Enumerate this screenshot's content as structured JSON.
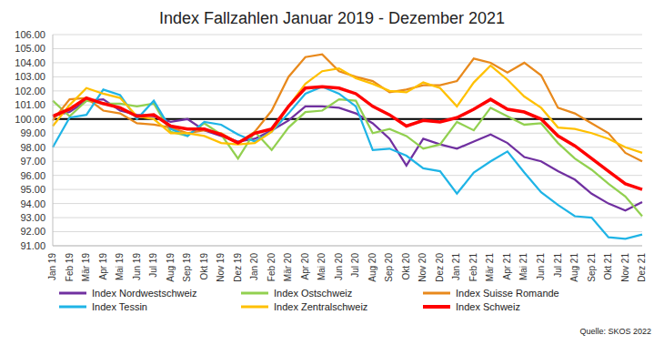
{
  "chart_data": {
    "type": "line",
    "title": "Index Fallzahlen Januar 2019 - Dezember 2021",
    "categories": [
      "Jan 19",
      "Feb 19",
      "Mär 19",
      "Apr 19",
      "Mai 19",
      "Jun 19",
      "Jul 19",
      "Aug 19",
      "Sep 19",
      "Okt 19",
      "Nov 19",
      "Dez 19",
      "Jan 20",
      "Feb 20",
      "Mär 20",
      "Apr 20",
      "Mai 20",
      "Jun 20",
      "Jul 20",
      "Aug 20",
      "Sep 20",
      "Okt 20",
      "Nov 20",
      "Dez 20",
      "Jan 21",
      "Feb 21",
      "Mär 21",
      "Apr 21",
      "Mai 21",
      "Jun 21",
      "Jul 21",
      "Aug 21",
      "Sep 21",
      "Okt 21",
      "Nov 21",
      "Dez 21"
    ],
    "series": [
      {
        "name": "Index Nordwestschweiz",
        "color": "#7030a0",
        "values": [
          100.2,
          100.5,
          101.3,
          101.4,
          100.6,
          100.3,
          100.2,
          99.8,
          100.0,
          99.2,
          98.8,
          98.4,
          98.6,
          99.2,
          99.9,
          100.9,
          100.9,
          100.8,
          100.4,
          99.7,
          98.6,
          96.7,
          98.6,
          98.2,
          97.9,
          98.4,
          98.9,
          98.3,
          97.3,
          97.0,
          96.3,
          95.7,
          94.7,
          94.0,
          93.5,
          94.1
        ]
      },
      {
        "name": "Index Ostschweiz",
        "color": "#92d050",
        "values": [
          101.3,
          100.2,
          101.3,
          101.1,
          101.1,
          100.9,
          101.1,
          99.1,
          98.8,
          99.7,
          98.9,
          97.2,
          99.1,
          97.8,
          99.4,
          100.5,
          100.6,
          101.4,
          101.3,
          99.0,
          99.3,
          98.8,
          97.9,
          98.2,
          99.8,
          99.2,
          100.8,
          100.2,
          99.6,
          99.7,
          98.3,
          97.2,
          96.4,
          95.4,
          94.5,
          93.1
        ]
      },
      {
        "name": "Index Suisse Romande",
        "color": "#e8891c",
        "values": [
          99.9,
          101.4,
          101.5,
          100.6,
          100.4,
          99.7,
          99.6,
          99.4,
          99.0,
          99.2,
          99.0,
          98.3,
          99.1,
          100.6,
          103.0,
          104.4,
          104.6,
          103.4,
          103.0,
          102.7,
          101.9,
          102.1,
          102.4,
          102.4,
          102.7,
          104.3,
          104.0,
          103.3,
          104.0,
          103.1,
          100.8,
          100.4,
          99.7,
          99.0,
          97.6,
          97.0
        ]
      },
      {
        "name": "Index Tessin",
        "color": "#1fb4e6",
        "values": [
          98.0,
          100.1,
          100.3,
          102.1,
          101.7,
          100.0,
          101.3,
          99.3,
          98.8,
          99.8,
          99.6,
          98.9,
          98.4,
          99.1,
          100.4,
          101.8,
          102.3,
          101.8,
          100.9,
          97.8,
          97.9,
          97.4,
          96.5,
          96.3,
          94.7,
          96.2,
          97.0,
          97.7,
          96.2,
          94.8,
          93.9,
          93.1,
          93.0,
          91.6,
          91.5,
          91.8
        ]
      },
      {
        "name": "Index Zentralschweiz",
        "color": "#ffc000",
        "values": [
          99.5,
          101.0,
          102.2,
          101.8,
          101.5,
          100.2,
          100.0,
          99.0,
          99.0,
          98.8,
          98.3,
          98.2,
          98.3,
          99.1,
          100.9,
          102.5,
          103.4,
          103.6,
          102.9,
          102.5,
          102.0,
          101.9,
          102.6,
          102.2,
          100.9,
          102.6,
          103.8,
          102.8,
          101.6,
          100.8,
          99.4,
          99.3,
          99.0,
          98.6,
          98.0,
          97.6
        ]
      },
      {
        "name": "Index Schweiz",
        "color": "#ff0000",
        "values": [
          100.2,
          100.7,
          101.5,
          101.1,
          100.8,
          100.2,
          100.3,
          99.5,
          99.3,
          99.3,
          98.9,
          98.3,
          99.0,
          99.3,
          100.9,
          102.2,
          102.3,
          102.2,
          101.8,
          100.9,
          100.3,
          99.5,
          99.9,
          99.8,
          100.1,
          100.7,
          101.4,
          100.7,
          100.5,
          100.0,
          98.8,
          98.1,
          97.2,
          96.3,
          95.4,
          95.0
        ]
      }
    ],
    "ylim": [
      91,
      106
    ],
    "yticks": [
      {
        "value": 91,
        "label": "91.00"
      },
      {
        "value": 92,
        "label": "92.00"
      },
      {
        "value": 93,
        "label": "93.00"
      },
      {
        "value": 94,
        "label": "94.00"
      },
      {
        "value": 95,
        "label": "95.00"
      },
      {
        "value": 96,
        "label": "96.00"
      },
      {
        "value": 97,
        "label": "97.00"
      },
      {
        "value": 98,
        "label": "98.00"
      },
      {
        "value": 99,
        "label": "99.00"
      },
      {
        "value": 100,
        "label": "100.00"
      },
      {
        "value": 101,
        "label": "101.00"
      },
      {
        "value": 102,
        "label": "102.00"
      },
      {
        "value": 103,
        "label": "103.00"
      },
      {
        "value": 104,
        "label": "104.00"
      },
      {
        "value": 105,
        "label": "105.00"
      },
      {
        "value": 106,
        "label": "106.00"
      }
    ],
    "reference_line": 100,
    "grid": true,
    "legend": "bottom",
    "annotations": [
      "Quelle: SKOS 2022"
    ]
  }
}
